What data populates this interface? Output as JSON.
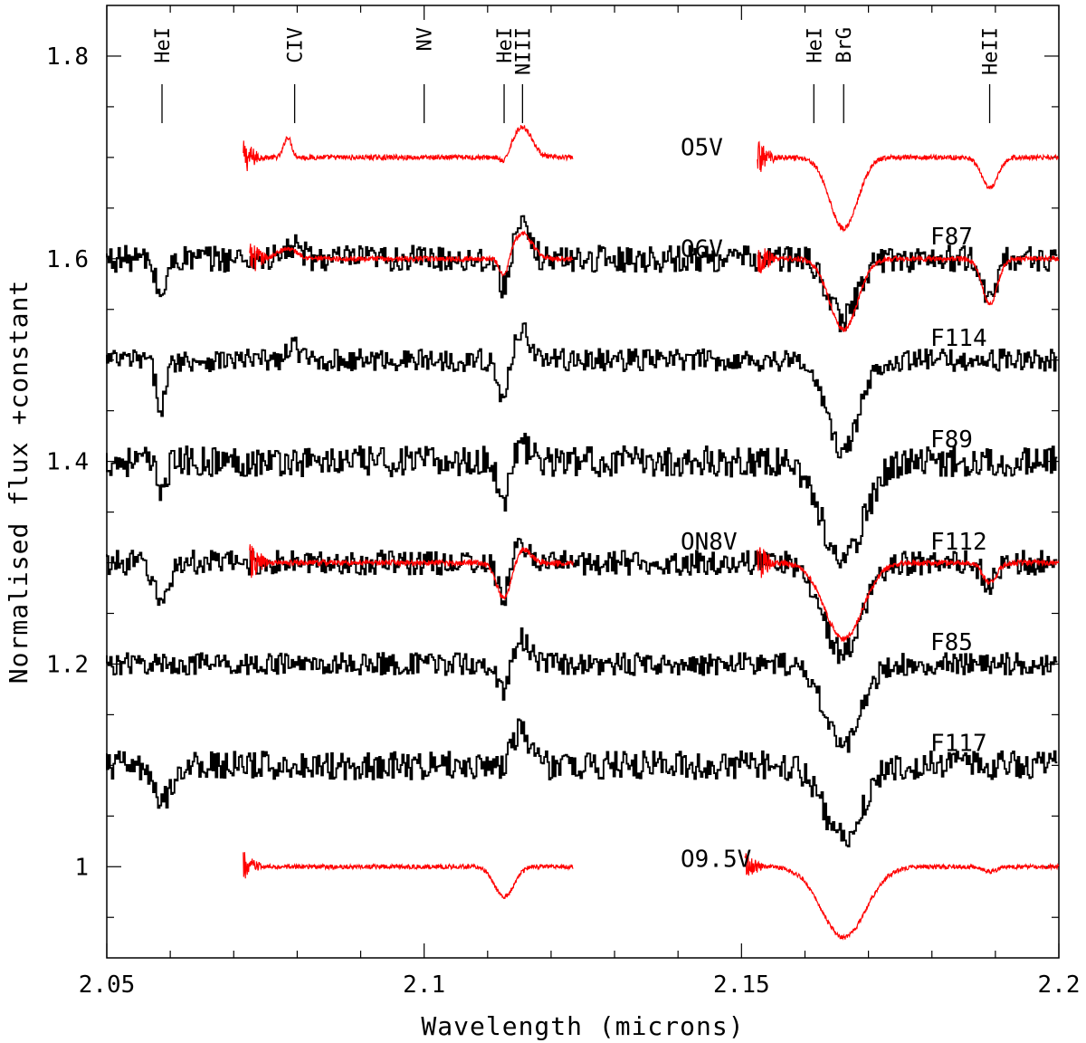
{
  "chart_data": {
    "type": "line",
    "title": "",
    "xlabel": "Wavelength (microns)",
    "ylabel": "Normalised flux +constant",
    "xlim": [
      2.05,
      2.2
    ],
    "ylim": [
      0.91,
      1.85
    ],
    "x_ticks": [
      {
        "value": 2.05,
        "label": "2.05"
      },
      {
        "value": 2.1,
        "label": "2.1"
      },
      {
        "value": 2.15,
        "label": "2.15"
      },
      {
        "value": 2.2,
        "label": "2.2"
      }
    ],
    "y_ticks": [
      {
        "value": 1.0,
        "label": "1"
      },
      {
        "value": 1.2,
        "label": "1.2"
      },
      {
        "value": 1.4,
        "label": "1.4"
      },
      {
        "value": 1.6,
        "label": "1.6"
      },
      {
        "value": 1.8,
        "label": "1.8"
      }
    ],
    "line_markers": [
      {
        "label": "HeI",
        "wavelength": 2.0587
      },
      {
        "label": "CIV",
        "wavelength": 2.0796
      },
      {
        "label": "NV",
        "wavelength": 2.1
      },
      {
        "label": "HeI",
        "wavelength": 2.1126
      },
      {
        "label": "NIII",
        "wavelength": 2.1155
      },
      {
        "label": "HeI",
        "wavelength": 2.1614
      },
      {
        "label": "BrG",
        "wavelength": 2.1661
      },
      {
        "label": "HeII",
        "wavelength": 2.1891
      }
    ],
    "series": [
      {
        "name": "O5V",
        "label": "O5V",
        "kind": "template",
        "color": "#ff0000",
        "offset": 1.7,
        "noise": 0.0025,
        "segments": [
          [
            2.0715,
            2.1235
          ],
          [
            2.1525,
            2.2
          ]
        ],
        "features": [
          {
            "center": 2.0785,
            "depth": -0.02,
            "width": 0.0006
          },
          {
            "center": 2.1126,
            "depth": 0.008,
            "width": 0.0006
          },
          {
            "center": 2.1155,
            "depth": -0.03,
            "width": 0.0015
          },
          {
            "center": 2.1661,
            "depth": 0.07,
            "width": 0.0022
          },
          {
            "center": 2.1891,
            "depth": 0.03,
            "width": 0.0013
          }
        ]
      },
      {
        "name": "O6V",
        "label": "O6V",
        "kind": "template",
        "color": "#ff0000",
        "offset": 1.6,
        "noise": 0.0025,
        "segments": [
          [
            2.0725,
            2.1235
          ],
          [
            2.1525,
            2.2
          ]
        ],
        "features": [
          {
            "center": 2.0785,
            "depth": -0.01,
            "width": 0.0015
          },
          {
            "center": 2.1126,
            "depth": 0.02,
            "width": 0.0007
          },
          {
            "center": 2.1155,
            "depth": -0.025,
            "width": 0.0015
          },
          {
            "center": 2.1661,
            "depth": 0.07,
            "width": 0.0022
          },
          {
            "center": 2.1891,
            "depth": 0.045,
            "width": 0.0012
          }
        ]
      },
      {
        "name": "F87",
        "label": "F87",
        "kind": "observed",
        "color": "#000000",
        "offset": 1.6,
        "noise": 0.013,
        "segments": [
          [
            2.05,
            2.2
          ]
        ],
        "features": [
          {
            "center": 2.0587,
            "depth": 0.035,
            "width": 0.0009
          },
          {
            "center": 2.0796,
            "depth": -0.012,
            "width": 0.0012
          },
          {
            "center": 2.1126,
            "depth": 0.03,
            "width": 0.0008
          },
          {
            "center": 2.1155,
            "depth": -0.03,
            "width": 0.0013
          },
          {
            "center": 2.1661,
            "depth": 0.06,
            "width": 0.0022
          },
          {
            "center": 2.1891,
            "depth": 0.04,
            "width": 0.0011
          }
        ]
      },
      {
        "name": "F114",
        "label": "F114",
        "kind": "observed",
        "color": "#000000",
        "offset": 1.5,
        "noise": 0.011,
        "segments": [
          [
            2.05,
            2.2
          ]
        ],
        "features": [
          {
            "center": 2.0587,
            "depth": 0.045,
            "width": 0.0008
          },
          {
            "center": 2.0796,
            "depth": -0.015,
            "width": 0.0008
          },
          {
            "center": 2.1126,
            "depth": 0.045,
            "width": 0.0008
          },
          {
            "center": 2.1155,
            "depth": -0.03,
            "width": 0.0013
          },
          {
            "center": 2.1661,
            "depth": 0.09,
            "width": 0.0025
          }
        ]
      },
      {
        "name": "F89",
        "label": "F89",
        "kind": "observed",
        "color": "#000000",
        "offset": 1.4,
        "noise": 0.015,
        "segments": [
          [
            2.05,
            2.2
          ]
        ],
        "features": [
          {
            "center": 2.0587,
            "depth": 0.025,
            "width": 0.0008
          },
          {
            "center": 2.1126,
            "depth": 0.04,
            "width": 0.0008
          },
          {
            "center": 2.1155,
            "depth": -0.015,
            "width": 0.0012
          },
          {
            "center": 2.1661,
            "depth": 0.1,
            "width": 0.0032
          }
        ]
      },
      {
        "name": "ON8V",
        "label": "ON8V",
        "kind": "template",
        "color": "#ff0000",
        "offset": 1.3,
        "noise": 0.0028,
        "segments": [
          [
            2.0725,
            2.1235
          ],
          [
            2.1525,
            2.2
          ]
        ],
        "features": [
          {
            "center": 2.1126,
            "depth": 0.035,
            "width": 0.0012
          },
          {
            "center": 2.1155,
            "depth": -0.015,
            "width": 0.0012
          },
          {
            "center": 2.1661,
            "depth": 0.075,
            "width": 0.003
          },
          {
            "center": 2.1891,
            "depth": 0.02,
            "width": 0.0011
          }
        ]
      },
      {
        "name": "F112",
        "label": "F112",
        "kind": "observed",
        "color": "#000000",
        "offset": 1.3,
        "noise": 0.012,
        "segments": [
          [
            2.05,
            2.2
          ]
        ],
        "features": [
          {
            "center": 2.0587,
            "depth": 0.04,
            "width": 0.0011
          },
          {
            "center": 2.1126,
            "depth": 0.035,
            "width": 0.0009
          },
          {
            "center": 2.1155,
            "depth": -0.018,
            "width": 0.0012
          },
          {
            "center": 2.1661,
            "depth": 0.09,
            "width": 0.003
          },
          {
            "center": 2.1891,
            "depth": 0.02,
            "width": 0.001
          }
        ]
      },
      {
        "name": "F85",
        "label": "F85",
        "kind": "observed",
        "color": "#000000",
        "offset": 1.2,
        "noise": 0.011,
        "segments": [
          [
            2.05,
            2.2
          ]
        ],
        "features": [
          {
            "center": 2.1126,
            "depth": 0.03,
            "width": 0.0008
          },
          {
            "center": 2.1155,
            "depth": -0.025,
            "width": 0.0012
          },
          {
            "center": 2.1661,
            "depth": 0.08,
            "width": 0.0028
          }
        ]
      },
      {
        "name": "F117",
        "label": "F117",
        "kind": "observed",
        "color": "#000000",
        "offset": 1.1,
        "noise": 0.014,
        "segments": [
          [
            2.05,
            2.2
          ]
        ],
        "features": [
          {
            "center": 2.0587,
            "depth": 0.035,
            "width": 0.0015
          },
          {
            "center": 2.1155,
            "depth": -0.035,
            "width": 0.0013
          },
          {
            "center": 2.1661,
            "depth": 0.07,
            "width": 0.003
          }
        ]
      },
      {
        "name": "O9.5V",
        "label": "O9.5V",
        "kind": "template",
        "color": "#ff0000",
        "offset": 1.0,
        "noise": 0.0022,
        "segments": [
          [
            2.0715,
            2.1235
          ],
          [
            2.1505,
            2.2
          ]
        ],
        "features": [
          {
            "center": 2.1126,
            "depth": 0.03,
            "width": 0.0015
          },
          {
            "center": 2.1661,
            "depth": 0.07,
            "width": 0.0035
          },
          {
            "center": 2.1891,
            "depth": 0.005,
            "width": 0.0011
          }
        ]
      }
    ]
  }
}
